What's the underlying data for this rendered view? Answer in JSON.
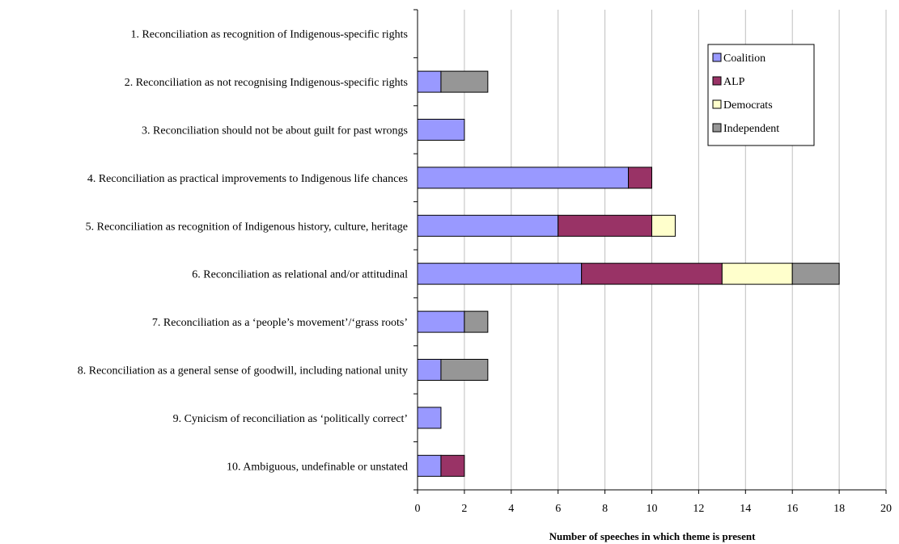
{
  "chart_data": {
    "type": "bar",
    "orientation": "horizontal",
    "stacked": true,
    "categories": [
      "1. Reconciliation as recognition of Indigenous-specific rights",
      "2. Reconciliation as not recognising Indigenous-specific rights",
      "3. Reconciliation should not be about guilt for past wrongs",
      "4. Reconciliation as practical improvements to Indigenous life chances",
      "5. Reconciliation as recognition of Indigenous history, culture, heritage",
      "6. Reconciliation as relational and/or attitudinal",
      "7. Reconciliation as a ‘people’s movement’/‘grass roots’",
      "8. Reconciliation as a general sense of goodwill, including national unity",
      "9. Cynicism of reconciliation as ‘politically correct’",
      "10. Ambiguous, undefinable or unstated"
    ],
    "series": [
      {
        "name": "Coalition",
        "color": "#9999ff",
        "values": [
          0,
          1,
          2,
          9,
          6,
          7,
          2,
          1,
          1,
          1
        ]
      },
      {
        "name": "ALP",
        "color": "#993366",
        "values": [
          0,
          0,
          0,
          1,
          4,
          6,
          0,
          0,
          0,
          1
        ]
      },
      {
        "name": "Democrats",
        "color": "#ffffcc",
        "values": [
          0,
          0,
          0,
          0,
          1,
          3,
          0,
          0,
          0,
          0
        ]
      },
      {
        "name": "Independent",
        "color": "#969696",
        "values": [
          0,
          2,
          0,
          0,
          0,
          2,
          1,
          2,
          0,
          0
        ]
      }
    ],
    "xlabel": "Number of speeches in which theme is present",
    "ylabel": "",
    "xlim": [
      0,
      20
    ],
    "xticks": [
      0,
      2,
      4,
      6,
      8,
      10,
      12,
      14,
      16,
      18,
      20
    ],
    "grid": "vertical",
    "legend_position": "top-right"
  }
}
